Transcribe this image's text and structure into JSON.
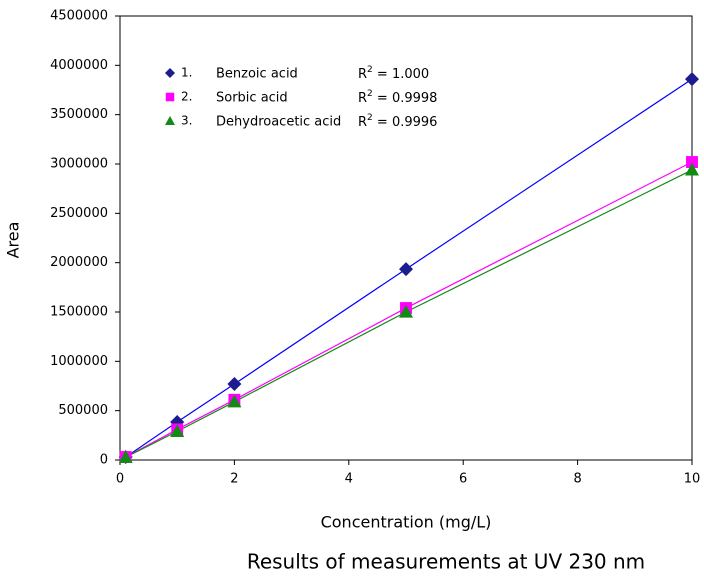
{
  "chart_data": {
    "type": "line",
    "x_label": "Concentration (mg/L)",
    "y_label": "Area",
    "caption": "Results of measurements  at UV 230 nm",
    "x": [
      0.1,
      1,
      2,
      5,
      10
    ],
    "xlim": [
      0,
      10
    ],
    "xticks": [
      0,
      2,
      4,
      6,
      8,
      10
    ],
    "ylim": [
      0,
      4500000
    ],
    "yticks": [
      0,
      500000,
      1000000,
      1500000,
      2000000,
      2500000,
      3000000,
      3500000,
      4000000,
      4500000
    ],
    "series": [
      {
        "name": "Benzoic acid",
        "number": "1.",
        "marker": "diamond",
        "color": "#1c1c8f",
        "line_color": "#0000ff",
        "r2_label": [
          "R",
          "2",
          " = 1.000"
        ],
        "values": [
          30000,
          385000,
          770000,
          1935000,
          3860000
        ]
      },
      {
        "name": "Sorbic acid",
        "number": "2.",
        "marker": "square",
        "color": "#ff00ff",
        "line_color": "#ff00ff",
        "r2_label": [
          "R",
          "2",
          " = 0.9998"
        ],
        "values": [
          30000,
          310000,
          610000,
          1540000,
          3020000
        ]
      },
      {
        "name": "Dehydroacetic acid",
        "number": "3.",
        "marker": "triangle",
        "color": "#138a13",
        "line_color": "#138a13",
        "r2_label": [
          "R",
          "2",
          " = 0.9996"
        ],
        "values": [
          28000,
          290000,
          590000,
          1500000,
          2940000
        ]
      }
    ]
  }
}
